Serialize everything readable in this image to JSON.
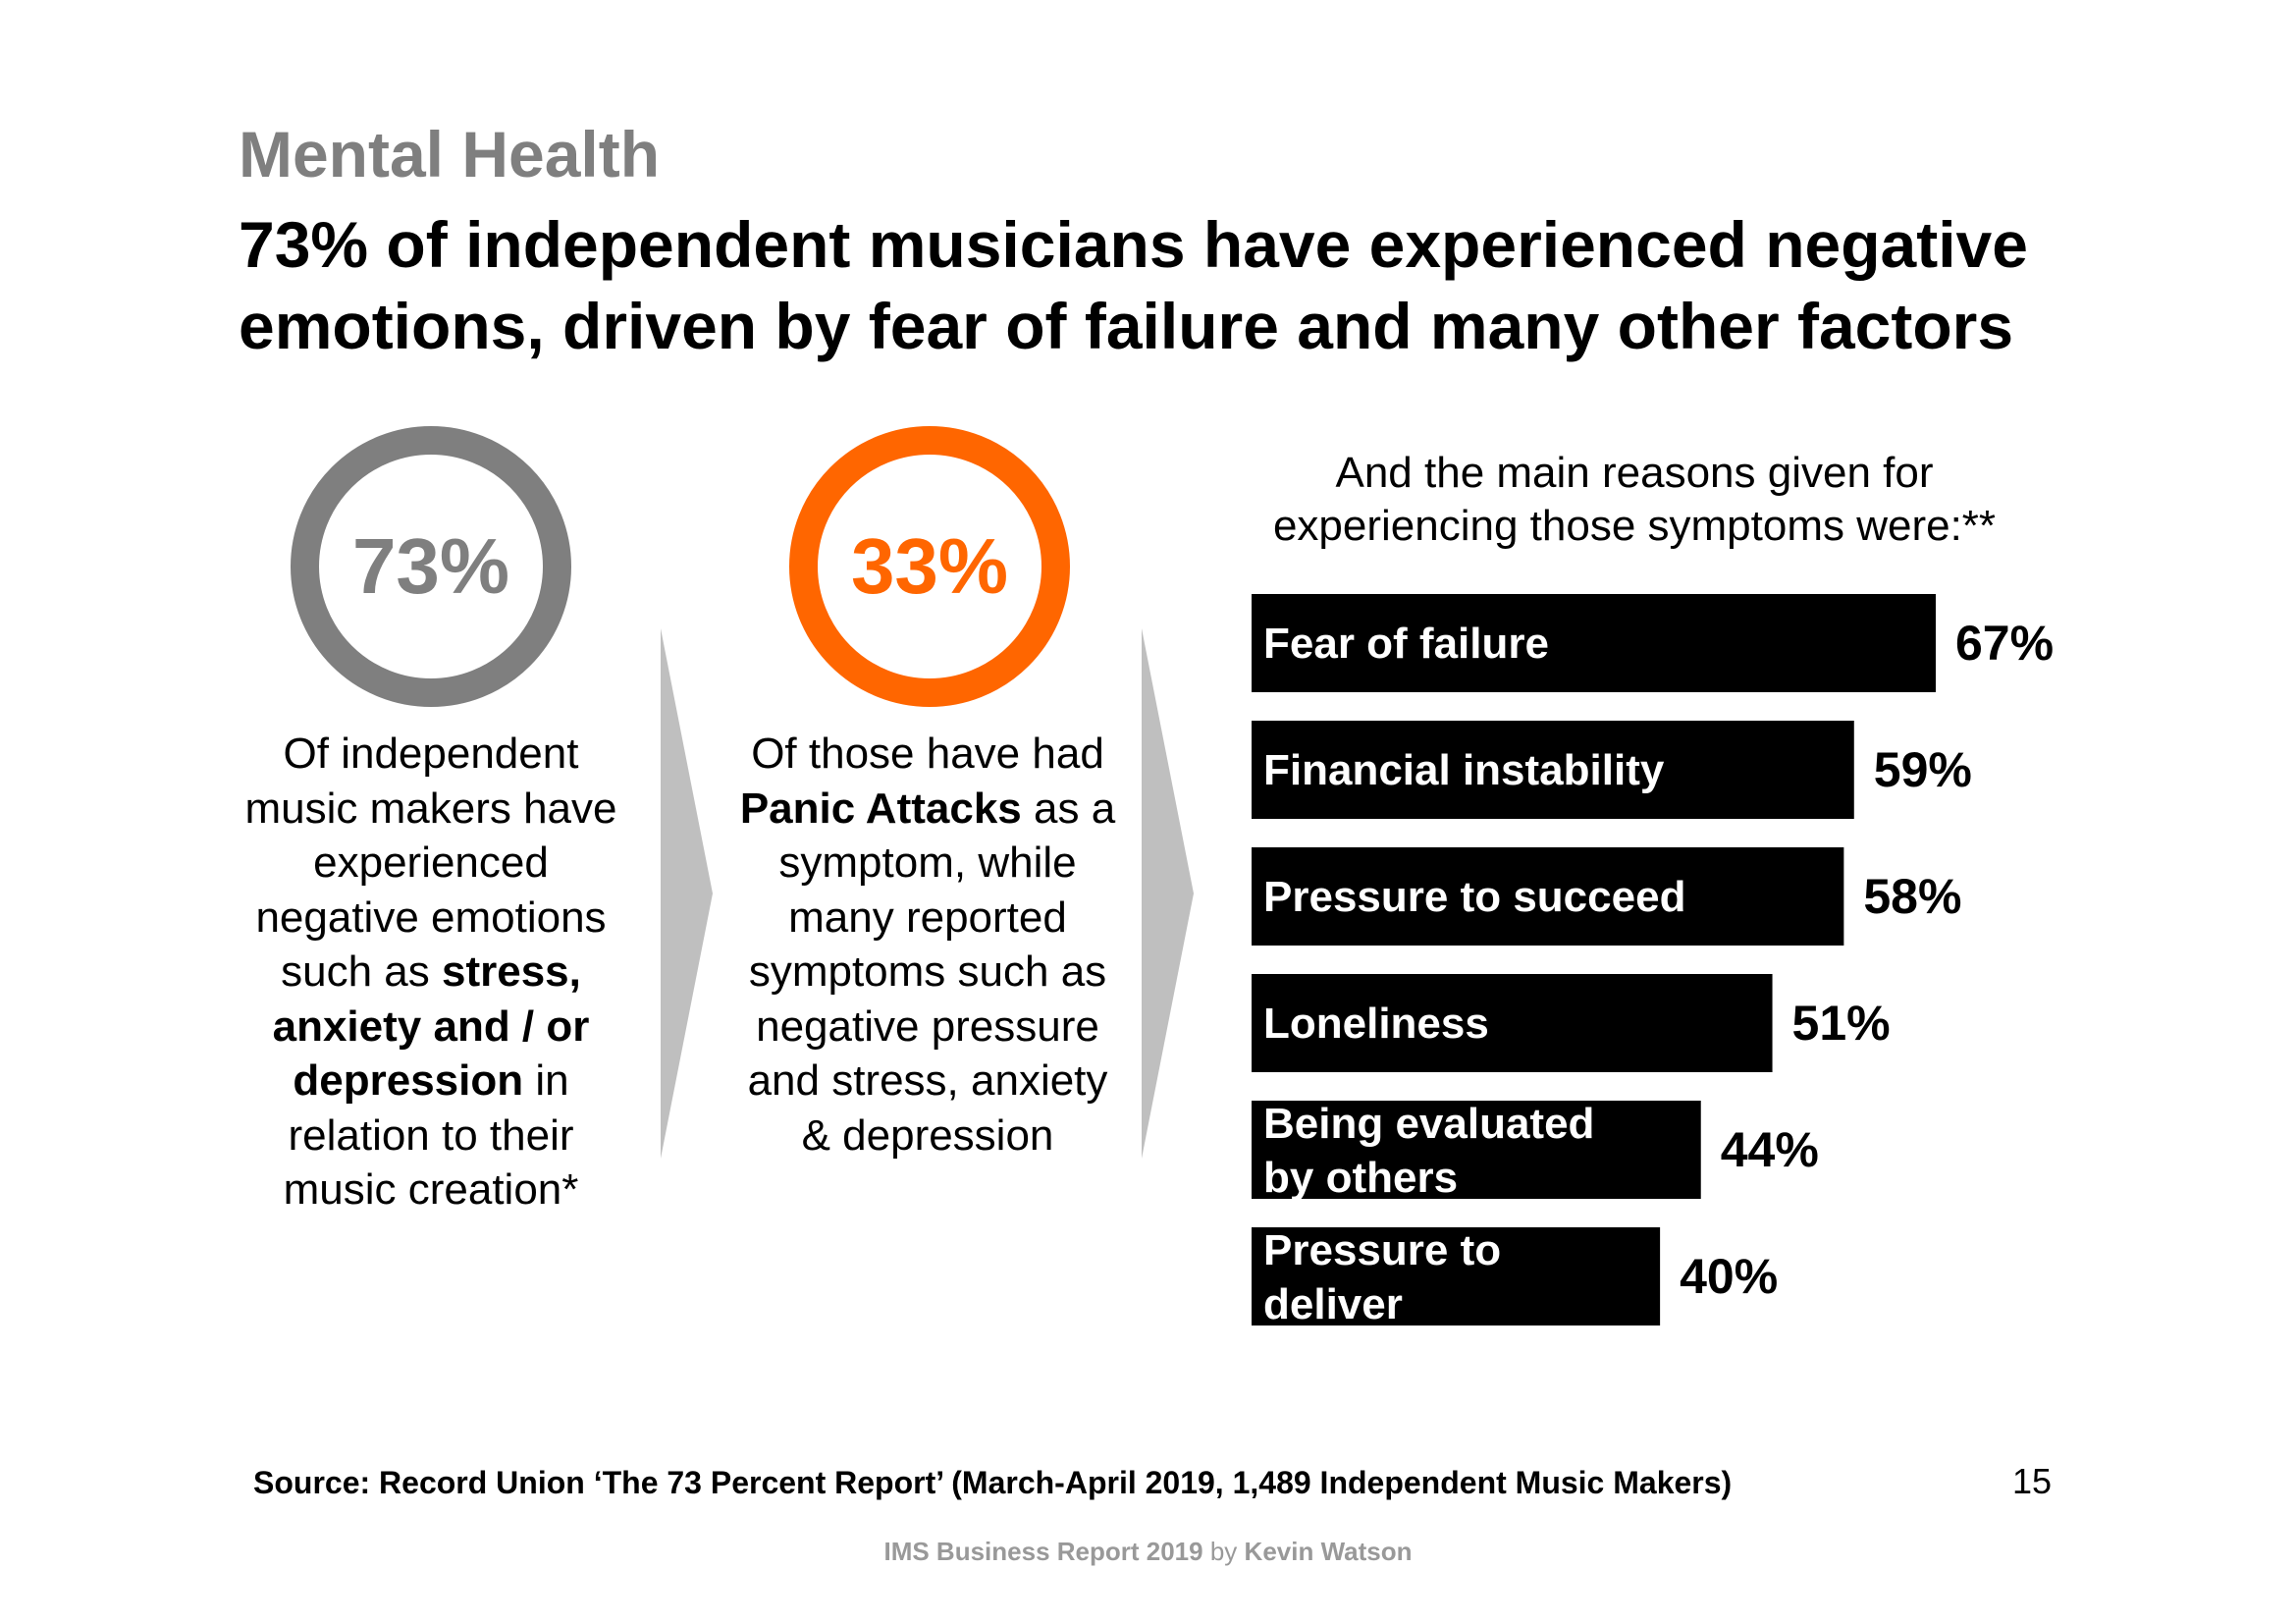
{
  "header": {
    "kicker": "Mental Health",
    "headline_line1": "73% of independent musicians have experienced negative",
    "headline_line2": "emotions, driven by fear of failure and many other factors"
  },
  "stats": [
    {
      "value": "73%",
      "color": "#7f7f7f",
      "description": {
        "a": "Of independent music makers have experienced negative emotions such as ",
        "bold": "stress, anxiety and / or depression",
        "b": " in relation to their music creation*"
      }
    },
    {
      "value": "33%",
      "color": "#ff6600",
      "description": {
        "a": "Of those have had ",
        "bold": "Panic Attacks",
        "b": " as a symptom, while many reported symptoms such as negative pressure and stress, anxiety & depression"
      }
    }
  ],
  "reasons_intro": "And the main reasons given for experiencing those symptoms were:**",
  "chart_data": {
    "type": "bar",
    "orientation": "horizontal",
    "categories": [
      [
        "Fear of failure"
      ],
      [
        "Financial instability"
      ],
      [
        "Pressure to succeed"
      ],
      [
        "Loneliness"
      ],
      [
        "Being evaluated",
        "by others"
      ],
      [
        "Pressure to",
        "deliver"
      ]
    ],
    "values": [
      67,
      59,
      58,
      51,
      44,
      40
    ],
    "value_labels": [
      "67%",
      "59%",
      "58%",
      "51%",
      "44%",
      "40%"
    ],
    "unit": "%",
    "xlim": [
      0,
      67
    ],
    "bar_color": "#000000",
    "label_color": "#ffffff"
  },
  "footer": {
    "source": "Source: Record Union ‘The 73 Percent Report’ (March-April 2019, 1,489 Independent Music Makers)",
    "page_number": "15",
    "report": "IMS Business Report 2019",
    "by": "by",
    "author": "Kevin Watson"
  }
}
